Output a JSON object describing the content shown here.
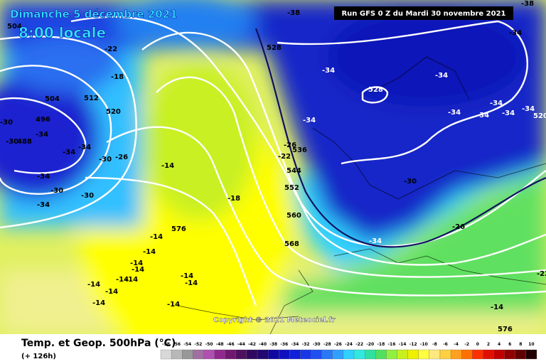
{
  "header": {
    "date": "Dimanche 5 décembre 2021",
    "time": "8:00 locale",
    "run": "Run GFS 0 Z du Mardi 30 novembre 2021"
  },
  "map": {
    "labels": [
      "-38",
      "-38",
      "-34",
      "504",
      "-22",
      "528",
      "-34",
      "-34",
      "-18",
      "528",
      "504",
      "512",
      "520",
      "496",
      "-34",
      "-30",
      "-30",
      "488",
      "-34",
      "-34",
      "-30",
      "-26",
      "-34",
      "-34",
      "-34",
      "-34",
      "-34",
      "-34",
      "520",
      "-14",
      "-26",
      "536",
      "-22",
      "544",
      "-34",
      "-30",
      "-30",
      "-34",
      "-30",
      "552",
      "-18",
      "560",
      "576",
      "-26",
      "-34",
      "568",
      "-14",
      "-14",
      "-14",
      "-14",
      "-14",
      "-14",
      "-14",
      "-14",
      "-14",
      "-14",
      "-14",
      "-14",
      "-22",
      "-14",
      "576"
    ],
    "copyright": "Copyright © 2021 Meteociel.fr"
  },
  "legend": {
    "title": "Temp. et Geop. 500hPa (°C)",
    "lead": "(+ 126h)",
    "values": [
      -58,
      -56,
      -54,
      -52,
      -50,
      -48,
      -46,
      -44,
      -42,
      -40,
      -38,
      -36,
      -34,
      -32,
      -30,
      -28,
      -26,
      -24,
      -22,
      -20,
      -18,
      -16,
      -14,
      -12,
      -10,
      -8,
      -6,
      -4,
      -2,
      0,
      2,
      4,
      6,
      8,
      10
    ],
    "colors": [
      "#d8d8d8",
      "#b8b8b8",
      "#989898",
      "#a070a0",
      "#b050b0",
      "#902890",
      "#701870",
      "#501060",
      "#300860",
      "#200870",
      "#1008a0",
      "#1010c0",
      "#1020d8",
      "#1838e8",
      "#2050f0",
      "#2878f8",
      "#30a0ff",
      "#30d0ff",
      "#30e8e0",
      "#30e0a0",
      "#50e060",
      "#90f040",
      "#c8f020",
      "#f0f000",
      "#ffff40",
      "#ffe880",
      "#ffd040",
      "#ffa020",
      "#ff7000",
      "#ff3000",
      "#e01000",
      "#c00000",
      "#900000",
      "#600000",
      "#200000"
    ]
  }
}
